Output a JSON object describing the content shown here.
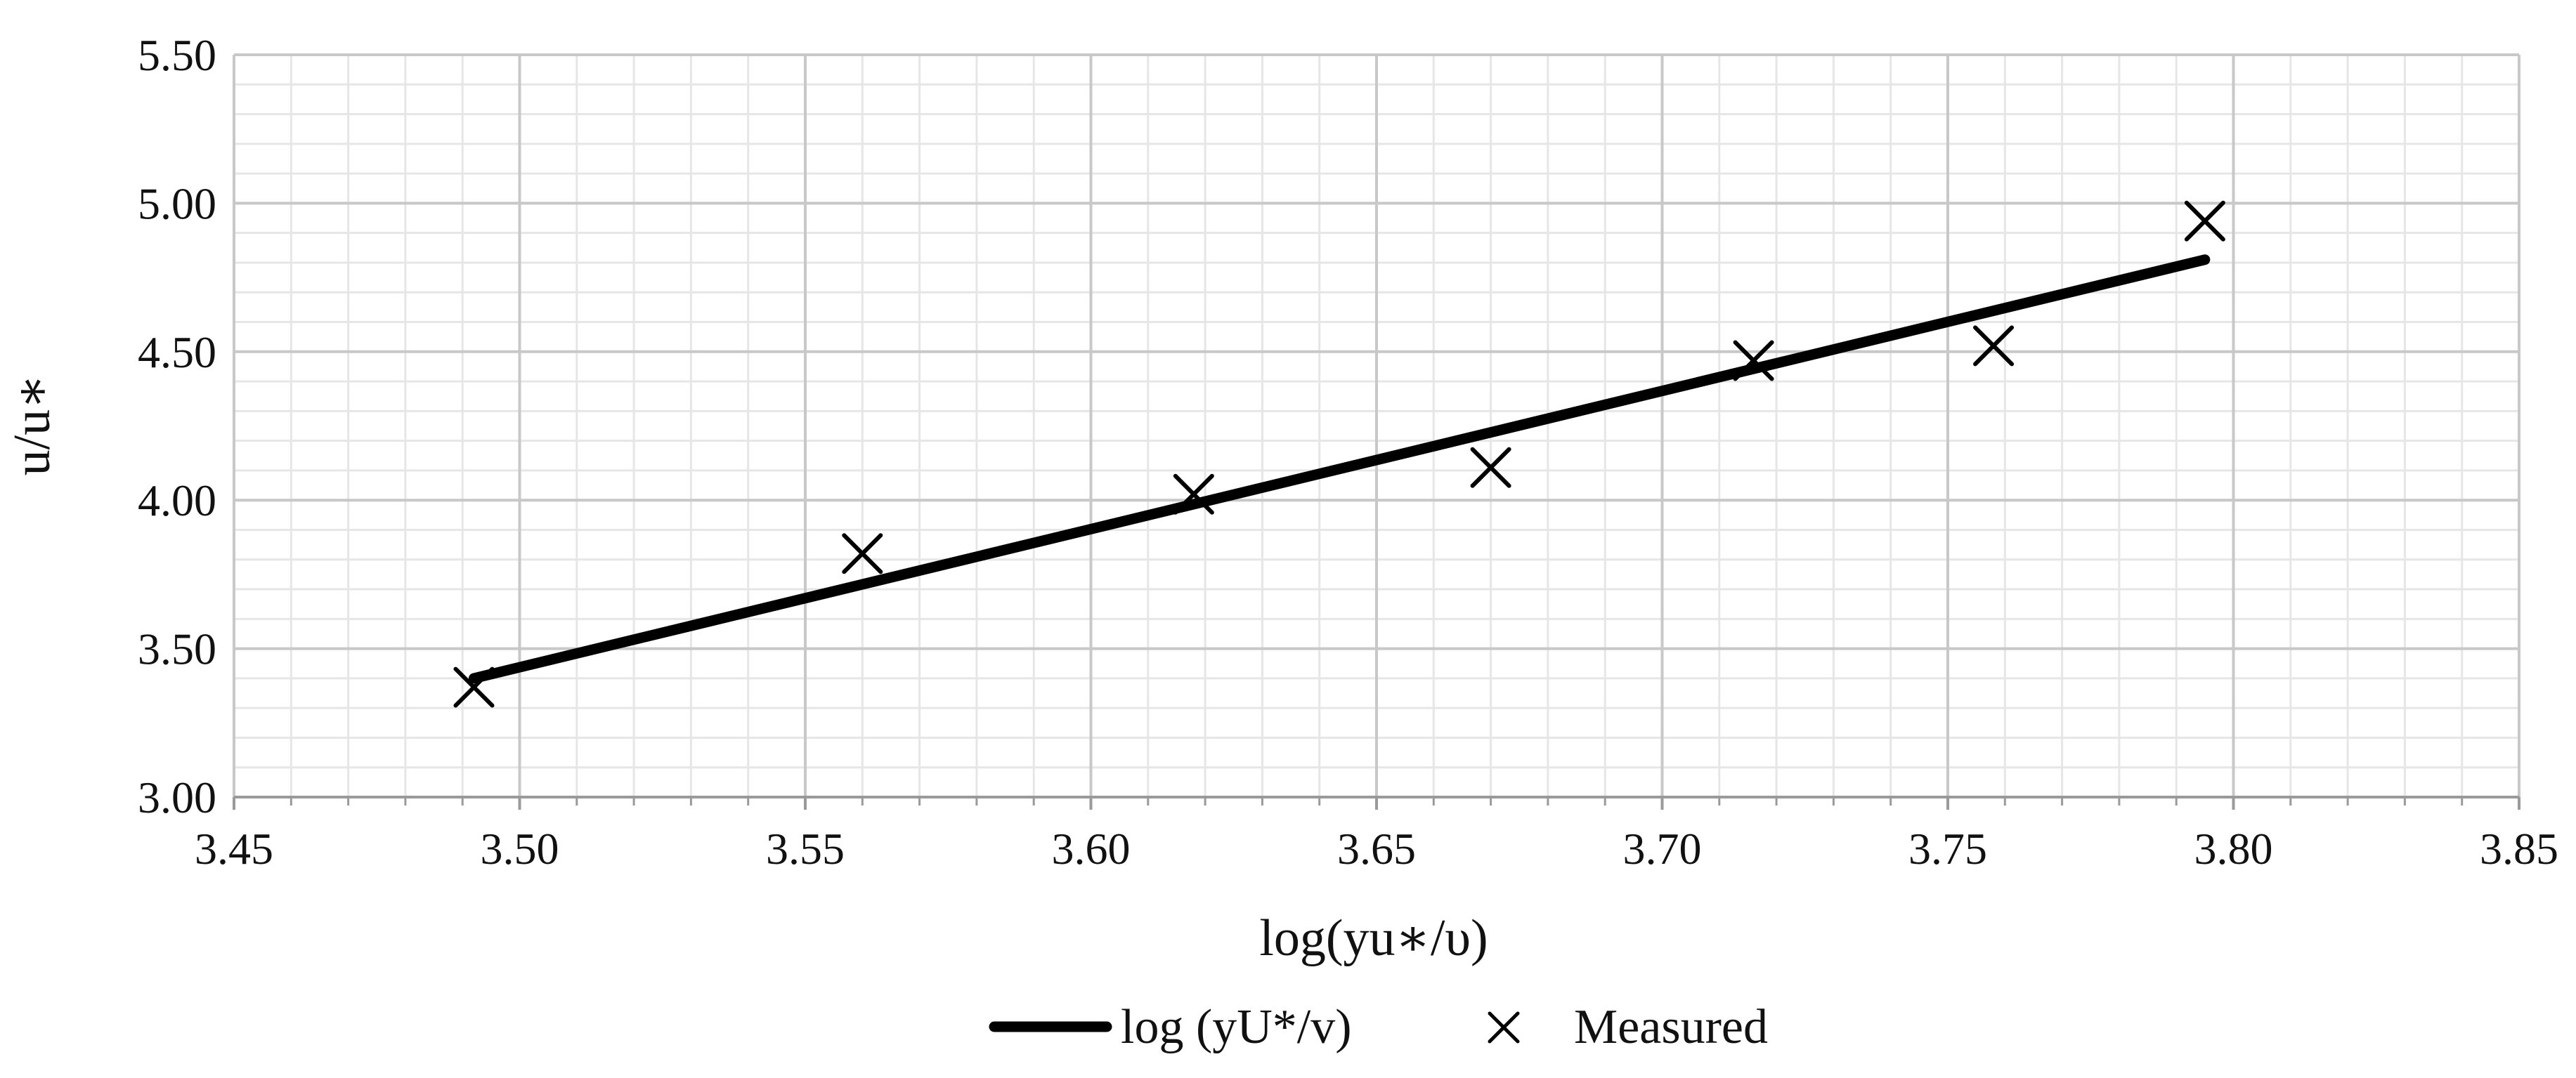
{
  "chart_data": {
    "type": "line+scatter",
    "title": "",
    "xlabel": "log(yu∗/υ)",
    "ylabel": "u/u∗",
    "xlim": [
      3.45,
      3.85
    ],
    "ylim": [
      3.0,
      5.5
    ],
    "x_ticks": [
      3.45,
      3.5,
      3.55,
      3.6,
      3.65,
      3.7,
      3.75,
      3.8,
      3.85
    ],
    "x_tick_labels": [
      "3.45",
      "3.50",
      "3.55",
      "3.60",
      "3.65",
      "3.70",
      "3.75",
      "3.80",
      "3.85"
    ],
    "y_ticks": [
      3.0,
      3.5,
      4.0,
      4.5,
      5.0,
      5.5
    ],
    "y_tick_labels": [
      "3.00",
      "3.50",
      "4.00",
      "4.50",
      "5.00",
      "5.50"
    ],
    "grid": true,
    "minor_grid": true,
    "legend_position": "bottom-center",
    "series": [
      {
        "name": "log (yU*/v)",
        "kind": "line",
        "color": "#000000",
        "x": [
          3.492,
          3.795
        ],
        "y": [
          3.4,
          4.81
        ]
      },
      {
        "name": "Measured",
        "kind": "scatter",
        "marker": "x",
        "color": "#000000",
        "x": [
          3.492,
          3.56,
          3.618,
          3.67,
          3.716,
          3.758,
          3.795
        ],
        "y": [
          3.37,
          3.82,
          4.02,
          4.11,
          4.47,
          4.52,
          4.94
        ]
      }
    ]
  }
}
